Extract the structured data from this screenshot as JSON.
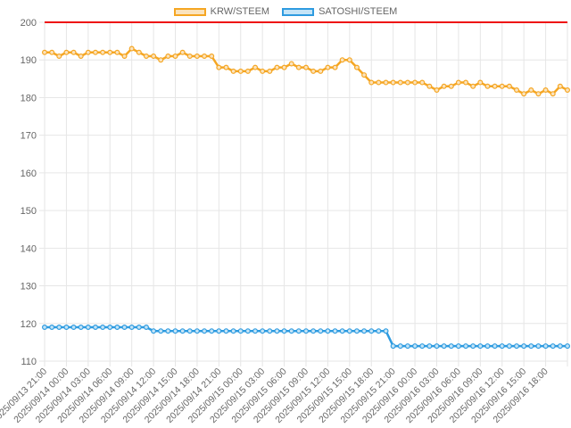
{
  "chart_data": {
    "type": "line",
    "title": "",
    "xlabel": "",
    "ylabel": "",
    "ylim": [
      110,
      200
    ],
    "yticks": [
      110,
      120,
      130,
      140,
      150,
      160,
      170,
      180,
      190,
      200
    ],
    "grid": true,
    "legend_position": "top-center",
    "reference_line": {
      "y": 200,
      "color": "#ee1111"
    },
    "x_tick_labels": [
      "2025/09/13 21:00",
      "2025/09/14 00:00",
      "2025/09/14 03:00",
      "2025/09/14 06:00",
      "2025/09/14 09:00",
      "2025/09/14 12:00",
      "2025/09/14 15:00",
      "2025/09/14 18:00",
      "2025/09/14 21:00",
      "2025/09/15 00:00",
      "2025/09/15 03:00",
      "2025/09/15 06:00",
      "2025/09/15 09:00",
      "2025/09/15 12:00",
      "2025/09/15 15:00",
      "2025/09/15 18:00",
      "2025/09/15 21:00",
      "2025/09/16 00:00",
      "2025/09/16 03:00",
      "2025/09/16 06:00",
      "2025/09/16 09:00",
      "2025/09/16 12:00",
      "2025/09/16 15:00",
      "2025/09/16 18:00"
    ],
    "series": [
      {
        "name": "KRW/STEEM",
        "color": "#f5a623",
        "fill": "#fbe3bd",
        "values": [
          192,
          192,
          191,
          192,
          192,
          191,
          192,
          192,
          192,
          192,
          192,
          191,
          193,
          192,
          191,
          191,
          190,
          191,
          191,
          192,
          191,
          191,
          191,
          191,
          188,
          188,
          187,
          187,
          187,
          188,
          187,
          187,
          188,
          188,
          189,
          188,
          188,
          187,
          187,
          188,
          188,
          190,
          190,
          188,
          186,
          184,
          184,
          184,
          184,
          184,
          184,
          184,
          184,
          183,
          182,
          183,
          183,
          184,
          184,
          183,
          184,
          183,
          183,
          183,
          183,
          182,
          181,
          182,
          181,
          182,
          181,
          183,
          182
        ]
      },
      {
        "name": "SATOSHI/STEEM",
        "color": "#2e9be0",
        "fill": "#c4e4f7",
        "values": [
          119,
          119,
          119,
          119,
          119,
          119,
          119,
          119,
          119,
          119,
          119,
          119,
          119,
          119,
          119,
          118,
          118,
          118,
          118,
          118,
          118,
          118,
          118,
          118,
          118,
          118,
          118,
          118,
          118,
          118,
          118,
          118,
          118,
          118,
          118,
          118,
          118,
          118,
          118,
          118,
          118,
          118,
          118,
          118,
          118,
          118,
          118,
          118,
          114,
          114,
          114,
          114,
          114,
          114,
          114,
          114,
          114,
          114,
          114,
          114,
          114,
          114,
          114,
          114,
          114,
          114,
          114,
          114,
          114,
          114,
          114,
          114,
          114
        ]
      }
    ]
  }
}
